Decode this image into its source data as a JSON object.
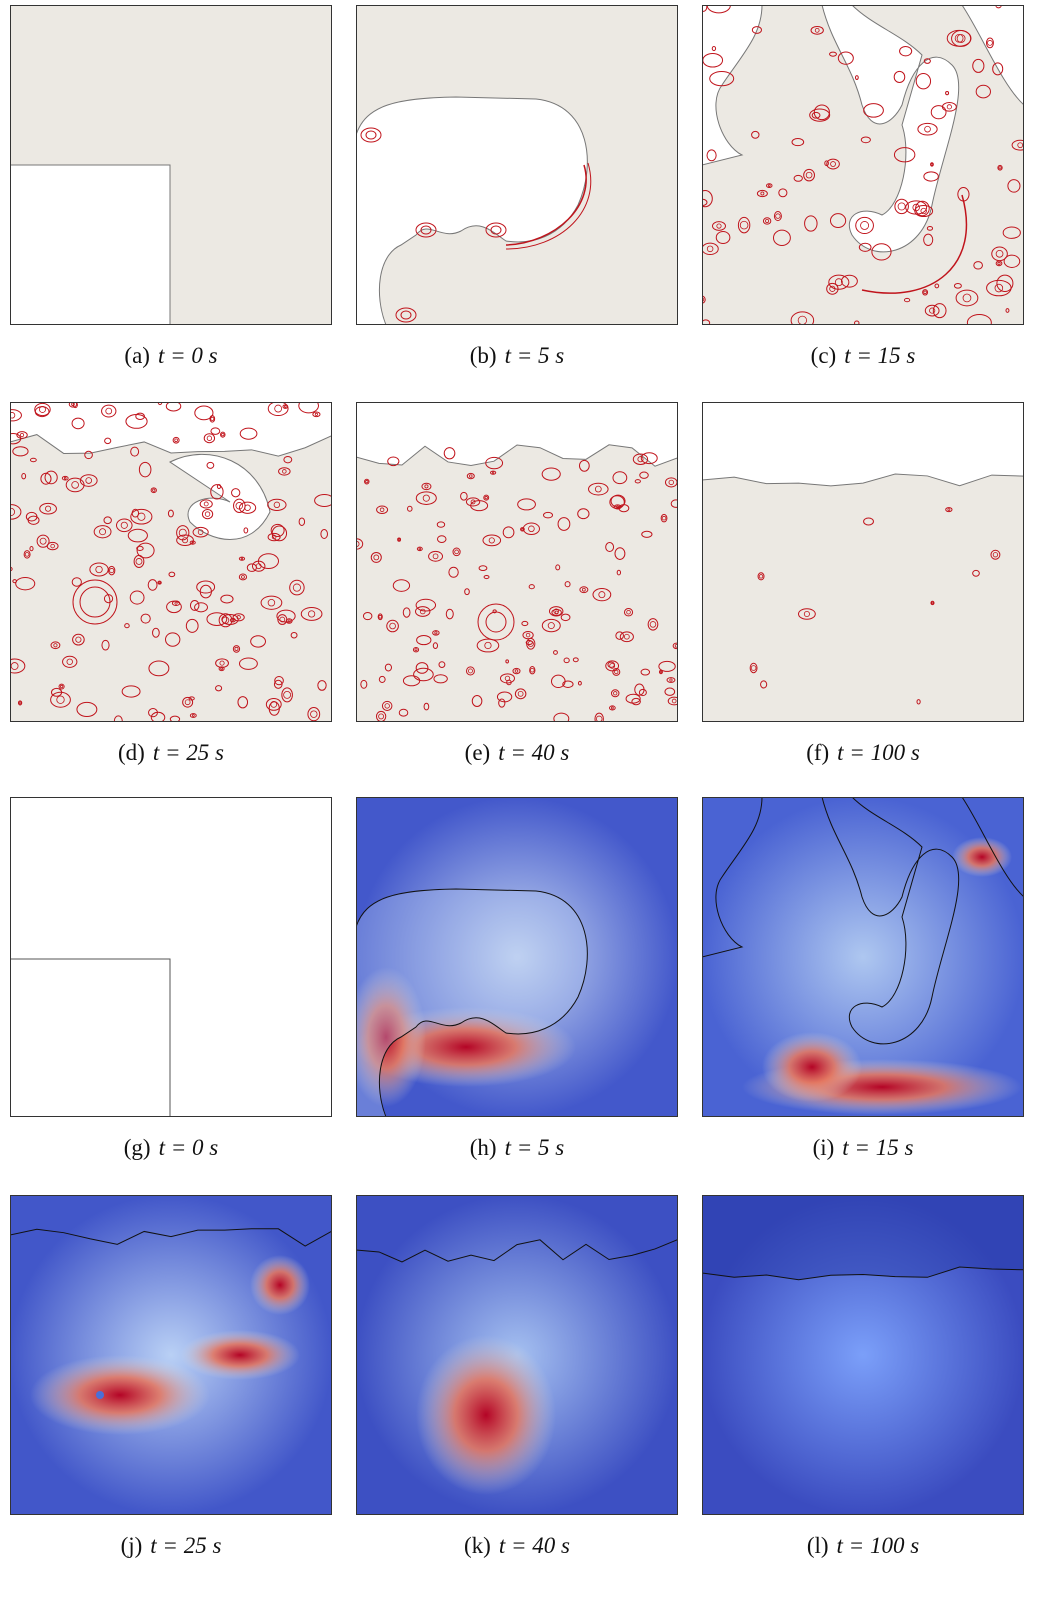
{
  "figure": {
    "panels": [
      {
        "label": "(a)",
        "time": "t = 0 s"
      },
      {
        "label": "(b)",
        "time": "t = 5 s"
      },
      {
        "label": "(c)",
        "time": "t = 15 s"
      },
      {
        "label": "(d)",
        "time": "t = 25 s"
      },
      {
        "label": "(e)",
        "time": "t = 40 s"
      },
      {
        "label": "(f)",
        "time": "t = 100 s"
      },
      {
        "label": "(g)",
        "time": "t = 0 s"
      },
      {
        "label": "(h)",
        "time": "t = 5 s"
      },
      {
        "label": "(i)",
        "time": "t = 15 s"
      },
      {
        "label": "(j)",
        "time": "t = 25 s"
      },
      {
        "label": "(k)",
        "time": "t = 40 s"
      },
      {
        "label": "(l)",
        "time": "t = 100 s"
      }
    ]
  }
}
